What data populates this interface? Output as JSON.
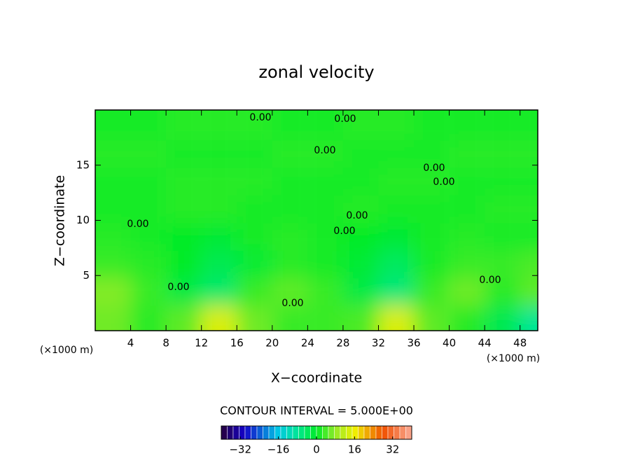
{
  "chart_data": {
    "type": "contour",
    "title": "zonal velocity",
    "x_label": "X−coordinate",
    "y_label": "Z−coordinate",
    "x_unit_label": "(×1000 m)",
    "xlim": [
      0,
      50
    ],
    "xticks": [
      4,
      8,
      12,
      16,
      20,
      24,
      28,
      32,
      36,
      40,
      44,
      48
    ],
    "ylim": [
      0,
      20
    ],
    "yticks": [
      5,
      10,
      15
    ],
    "grid_x": [
      2,
      6,
      10,
      14,
      18,
      22,
      26,
      30,
      34,
      38,
      42,
      46,
      50
    ],
    "grid_y": [
      1,
      3.5,
      6,
      8.5,
      11,
      13.5,
      16,
      18.5
    ],
    "z": [
      [
        6,
        2,
        5,
        14,
        6,
        3,
        3,
        4,
        14,
        5,
        2,
        -3,
        -8
      ],
      [
        7,
        3,
        -2,
        -5,
        3,
        5,
        3,
        -2,
        -6,
        3,
        6,
        2,
        5
      ],
      [
        3,
        2,
        0,
        -3,
        -1,
        2,
        1,
        -1,
        -4,
        1,
        3,
        3,
        4
      ],
      [
        2,
        1,
        0,
        -1,
        1,
        2,
        1,
        0,
        -1,
        1,
        2,
        1,
        1
      ],
      [
        1,
        1,
        2,
        2,
        1,
        1,
        1,
        2,
        1,
        1,
        1,
        2,
        2
      ],
      [
        1,
        1,
        2,
        2,
        2,
        1,
        1,
        1,
        2,
        2,
        1,
        1,
        1
      ],
      [
        2,
        2,
        1,
        1,
        1,
        2,
        2,
        1,
        1,
        1,
        2,
        2,
        2
      ],
      [
        1,
        1,
        2,
        2,
        2,
        1,
        1,
        2,
        2,
        1,
        1,
        1,
        1
      ]
    ],
    "contour_labels": [
      "0.00",
      "0.00",
      "0.00",
      "0.00",
      "0.00",
      "0.00",
      "0.00",
      "0.00",
      "0.00",
      "0.00",
      "0.00"
    ],
    "contour_interval_label": "CONTOUR INTERVAL = 5.000E+00",
    "clim": [
      -40,
      40
    ],
    "cticks": [
      {
        "value": -32,
        "label": "−32"
      },
      {
        "value": -16,
        "label": "−16"
      },
      0,
      16,
      32
    ]
  }
}
